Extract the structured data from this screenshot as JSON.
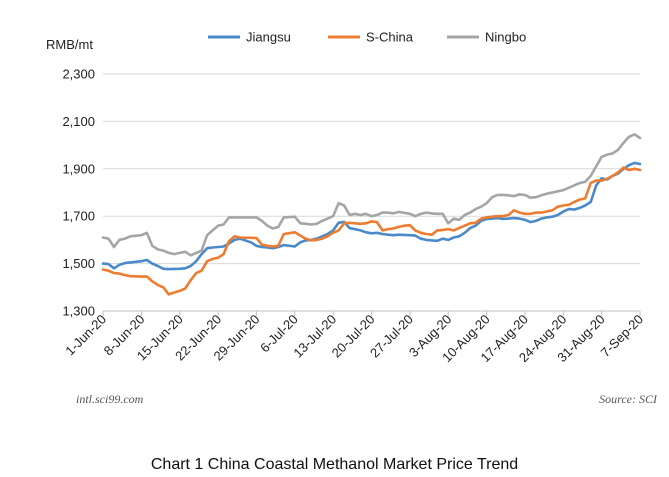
{
  "chart_data": {
    "type": "line",
    "ylabel": "RMB/mt",
    "ylim": [
      1300,
      2300
    ],
    "yticks": [
      1300,
      1500,
      1700,
      1900,
      2100,
      2300
    ],
    "ytick_labels": [
      "1,300",
      "1,500",
      "1,700",
      "1,900",
      "2,100",
      "2,300"
    ],
    "xlim": [
      0,
      98
    ],
    "xticks": [
      0,
      7,
      14,
      21,
      28,
      35,
      42,
      49,
      56,
      63,
      70,
      77,
      84,
      91,
      98
    ],
    "xtick_labels": [
      "1-Jun-20",
      "8-Jun-20",
      "15-Jun-20",
      "22-Jun-20",
      "29-Jun-20",
      "6-Jul-20",
      "13-Jul-20",
      "20-Jul-20",
      "27-Jul-20",
      "3-Aug-20",
      "10-Aug-20",
      "17-Aug-20",
      "24-Aug-20",
      "31-Aug-20",
      "7-Sep-20"
    ],
    "grid": "horizontal",
    "legend": "top",
    "series": [
      {
        "name": "Jiangsu",
        "color": "#4a8ac9",
        "points": [
          [
            0,
            1500
          ],
          [
            1,
            1498
          ],
          [
            2,
            1480
          ],
          [
            3,
            1495
          ],
          [
            4,
            1502
          ],
          [
            5,
            1505
          ],
          [
            7,
            1510
          ],
          [
            8,
            1515
          ],
          [
            9,
            1500
          ],
          [
            10,
            1490
          ],
          [
            11,
            1478
          ],
          [
            12,
            1477
          ],
          [
            14,
            1478
          ],
          [
            15,
            1480
          ],
          [
            16,
            1490
          ],
          [
            17,
            1510
          ],
          [
            18,
            1540
          ],
          [
            19,
            1565
          ],
          [
            20,
            1568
          ],
          [
            21,
            1570
          ],
          [
            22,
            1572
          ],
          [
            23,
            1585
          ],
          [
            24,
            1600
          ],
          [
            25,
            1605
          ],
          [
            27,
            1590
          ],
          [
            28,
            1575
          ],
          [
            29,
            1570
          ],
          [
            30,
            1568
          ],
          [
            31,
            1565
          ],
          [
            32,
            1570
          ],
          [
            33,
            1578
          ],
          [
            35,
            1572
          ],
          [
            36,
            1590
          ],
          [
            37,
            1598
          ],
          [
            38,
            1600
          ],
          [
            39,
            1605
          ],
          [
            40,
            1615
          ],
          [
            41,
            1625
          ],
          [
            42,
            1640
          ],
          [
            43,
            1672
          ],
          [
            44,
            1676
          ],
          [
            45,
            1650
          ],
          [
            46,
            1645
          ],
          [
            47,
            1640
          ],
          [
            48,
            1632
          ],
          [
            49,
            1628
          ],
          [
            50,
            1630
          ],
          [
            51,
            1625
          ],
          [
            52,
            1622
          ],
          [
            53,
            1620
          ],
          [
            54,
            1622
          ],
          [
            56,
            1620
          ],
          [
            57,
            1618
          ],
          [
            58,
            1605
          ],
          [
            59,
            1600
          ],
          [
            60,
            1598
          ],
          [
            61,
            1596
          ],
          [
            62,
            1605
          ],
          [
            63,
            1600
          ],
          [
            64,
            1610
          ],
          [
            65,
            1615
          ],
          [
            66,
            1630
          ],
          [
            67,
            1650
          ],
          [
            68,
            1660
          ],
          [
            69,
            1680
          ],
          [
            70,
            1688
          ],
          [
            71,
            1690
          ],
          [
            72,
            1692
          ],
          [
            73,
            1688
          ],
          [
            74,
            1690
          ],
          [
            75,
            1692
          ],
          [
            76,
            1690
          ],
          [
            77,
            1685
          ],
          [
            78,
            1675
          ],
          [
            79,
            1680
          ],
          [
            80,
            1690
          ],
          [
            81,
            1695
          ],
          [
            82,
            1698
          ],
          [
            83,
            1705
          ],
          [
            84,
            1720
          ],
          [
            85,
            1730
          ],
          [
            86,
            1728
          ],
          [
            87,
            1735
          ],
          [
            88,
            1745
          ],
          [
            89,
            1760
          ],
          [
            90,
            1830
          ],
          [
            91,
            1860
          ],
          [
            92,
            1855
          ],
          [
            93,
            1870
          ],
          [
            94,
            1880
          ],
          [
            95,
            1900
          ],
          [
            96,
            1915
          ],
          [
            97,
            1925
          ],
          [
            98,
            1920
          ]
        ]
      },
      {
        "name": "S-China",
        "color": "#ec7d31",
        "points": [
          [
            0,
            1475
          ],
          [
            1,
            1470
          ],
          [
            2,
            1460
          ],
          [
            3,
            1458
          ],
          [
            4,
            1452
          ],
          [
            5,
            1447
          ],
          [
            7,
            1445
          ],
          [
            8,
            1446
          ],
          [
            9,
            1425
          ],
          [
            10,
            1410
          ],
          [
            11,
            1400
          ],
          [
            12,
            1370
          ],
          [
            13,
            1378
          ],
          [
            14,
            1385
          ],
          [
            15,
            1395
          ],
          [
            16,
            1430
          ],
          [
            17,
            1460
          ],
          [
            18,
            1470
          ],
          [
            19,
            1510
          ],
          [
            20,
            1520
          ],
          [
            21,
            1525
          ],
          [
            22,
            1540
          ],
          [
            23,
            1595
          ],
          [
            24,
            1615
          ],
          [
            25,
            1610
          ],
          [
            28,
            1608
          ],
          [
            29,
            1580
          ],
          [
            30,
            1575
          ],
          [
            31,
            1572
          ],
          [
            32,
            1575
          ],
          [
            33,
            1625
          ],
          [
            35,
            1632
          ],
          [
            36,
            1618
          ],
          [
            37,
            1605
          ],
          [
            38,
            1598
          ],
          [
            39,
            1600
          ],
          [
            40,
            1605
          ],
          [
            41,
            1615
          ],
          [
            42,
            1630
          ],
          [
            43,
            1640
          ],
          [
            44,
            1670
          ],
          [
            45,
            1672
          ],
          [
            46,
            1670
          ],
          [
            47,
            1668
          ],
          [
            48,
            1670
          ],
          [
            49,
            1678
          ],
          [
            50,
            1675
          ],
          [
            51,
            1640
          ],
          [
            52,
            1645
          ],
          [
            53,
            1648
          ],
          [
            54,
            1655
          ],
          [
            55,
            1660
          ],
          [
            56,
            1662
          ],
          [
            57,
            1640
          ],
          [
            58,
            1630
          ],
          [
            59,
            1625
          ],
          [
            60,
            1622
          ],
          [
            61,
            1640
          ],
          [
            62,
            1642
          ],
          [
            63,
            1645
          ],
          [
            64,
            1640
          ],
          [
            65,
            1650
          ],
          [
            66,
            1660
          ],
          [
            67,
            1670
          ],
          [
            68,
            1672
          ],
          [
            69,
            1690
          ],
          [
            70,
            1695
          ],
          [
            71,
            1698
          ],
          [
            72,
            1700
          ],
          [
            73,
            1700
          ],
          [
            74,
            1705
          ],
          [
            75,
            1725
          ],
          [
            76,
            1715
          ],
          [
            77,
            1710
          ],
          [
            78,
            1710
          ],
          [
            79,
            1715
          ],
          [
            80,
            1715
          ],
          [
            81,
            1720
          ],
          [
            82,
            1725
          ],
          [
            83,
            1740
          ],
          [
            84,
            1745
          ],
          [
            85,
            1748
          ],
          [
            86,
            1760
          ],
          [
            87,
            1770
          ],
          [
            88,
            1775
          ],
          [
            89,
            1840
          ],
          [
            90,
            1850
          ],
          [
            91,
            1850
          ],
          [
            92,
            1858
          ],
          [
            93,
            1870
          ],
          [
            94,
            1885
          ],
          [
            95,
            1905
          ],
          [
            96,
            1895
          ],
          [
            97,
            1900
          ],
          [
            98,
            1895
          ]
        ]
      },
      {
        "name": "Ningbo",
        "color": "#a5a5a5",
        "points": [
          [
            0,
            1610
          ],
          [
            1,
            1605
          ],
          [
            2,
            1570
          ],
          [
            3,
            1600
          ],
          [
            4,
            1605
          ],
          [
            5,
            1615
          ],
          [
            7,
            1620
          ],
          [
            8,
            1630
          ],
          [
            9,
            1575
          ],
          [
            10,
            1560
          ],
          [
            11,
            1555
          ],
          [
            12,
            1545
          ],
          [
            13,
            1540
          ],
          [
            14,
            1545
          ],
          [
            15,
            1550
          ],
          [
            16,
            1535
          ],
          [
            17,
            1545
          ],
          [
            18,
            1555
          ],
          [
            19,
            1620
          ],
          [
            20,
            1640
          ],
          [
            21,
            1660
          ],
          [
            22,
            1665
          ],
          [
            23,
            1695
          ],
          [
            28,
            1695
          ],
          [
            29,
            1680
          ],
          [
            30,
            1660
          ],
          [
            31,
            1648
          ],
          [
            32,
            1655
          ],
          [
            33,
            1695
          ],
          [
            35,
            1698
          ],
          [
            36,
            1670
          ],
          [
            37,
            1668
          ],
          [
            38,
            1665
          ],
          [
            39,
            1668
          ],
          [
            40,
            1680
          ],
          [
            41,
            1690
          ],
          [
            42,
            1700
          ],
          [
            43,
            1755
          ],
          [
            44,
            1745
          ],
          [
            45,
            1705
          ],
          [
            46,
            1710
          ],
          [
            47,
            1705
          ],
          [
            48,
            1710
          ],
          [
            49,
            1700
          ],
          [
            50,
            1705
          ],
          [
            51,
            1715
          ],
          [
            52,
            1715
          ],
          [
            53,
            1712
          ],
          [
            54,
            1718
          ],
          [
            55,
            1714
          ],
          [
            56,
            1710
          ],
          [
            57,
            1700
          ],
          [
            58,
            1710
          ],
          [
            59,
            1715
          ],
          [
            60,
            1712
          ],
          [
            61,
            1710
          ],
          [
            62,
            1710
          ],
          [
            63,
            1670
          ],
          [
            64,
            1690
          ],
          [
            65,
            1685
          ],
          [
            66,
            1705
          ],
          [
            67,
            1715
          ],
          [
            68,
            1730
          ],
          [
            69,
            1740
          ],
          [
            70,
            1755
          ],
          [
            71,
            1780
          ],
          [
            72,
            1790
          ],
          [
            73,
            1790
          ],
          [
            74,
            1788
          ],
          [
            75,
            1785
          ],
          [
            76,
            1792
          ],
          [
            77,
            1790
          ],
          [
            78,
            1778
          ],
          [
            79,
            1780
          ],
          [
            80,
            1788
          ],
          [
            81,
            1795
          ],
          [
            82,
            1800
          ],
          [
            83,
            1805
          ],
          [
            84,
            1810
          ],
          [
            85,
            1820
          ],
          [
            86,
            1830
          ],
          [
            87,
            1840
          ],
          [
            88,
            1845
          ],
          [
            89,
            1870
          ],
          [
            90,
            1910
          ],
          [
            91,
            1950
          ],
          [
            92,
            1960
          ],
          [
            93,
            1965
          ],
          [
            94,
            1980
          ],
          [
            95,
            2010
          ],
          [
            96,
            2035
          ],
          [
            97,
            2045
          ],
          [
            98,
            2030
          ]
        ]
      }
    ]
  },
  "footer": {
    "website": "intl.sci99.com",
    "source": "Source: SCI"
  },
  "caption": "Chart 1 China Coastal Methanol Market Price Trend"
}
